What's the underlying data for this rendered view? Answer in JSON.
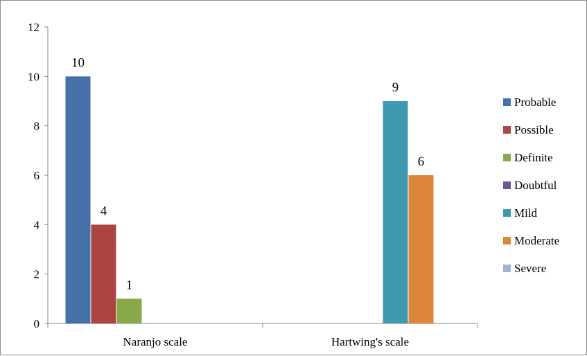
{
  "chart_data": {
    "type": "bar",
    "categories": [
      "Naranjo scale",
      "Hartwing's scale"
    ],
    "series": [
      {
        "name": "Probable",
        "values": [
          10,
          0
        ],
        "color": "#4472a8"
      },
      {
        "name": "Possible",
        "values": [
          4,
          0
        ],
        "color": "#ab4542"
      },
      {
        "name": "Definite",
        "values": [
          1,
          0
        ],
        "color": "#8aa84a"
      },
      {
        "name": "Doubtful",
        "values": [
          0,
          0
        ],
        "color": "#6e5593"
      },
      {
        "name": "Mild",
        "values": [
          0,
          9
        ],
        "color": "#3f9ab0"
      },
      {
        "name": "Moderate",
        "values": [
          0,
          6
        ],
        "color": "#dd8538"
      },
      {
        "name": "Severe",
        "values": [
          0,
          0
        ],
        "color": "#9db3d6"
      }
    ],
    "y_ticks": [
      "0",
      "2",
      "4",
      "6",
      "8",
      "10",
      "12"
    ],
    "ylim": [
      0,
      12
    ],
    "grid": false,
    "legend_position": "right"
  }
}
